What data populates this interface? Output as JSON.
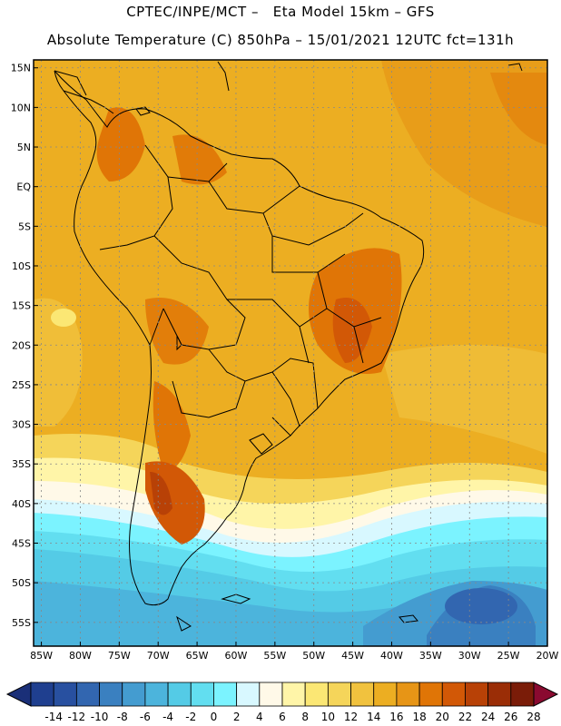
{
  "header": {
    "line1": "CPTEC/INPE/MCT –   Eta Model 15km – GFS",
    "line2": "Absolute Temperature (C) 850hPa – 15/01/2021 12UTC fct=131h"
  },
  "map": {
    "lat_labels": [
      "15N",
      "10N",
      "5N",
      "EQ",
      "5S",
      "10S",
      "15S",
      "20S",
      "25S",
      "30S",
      "35S",
      "40S",
      "45S",
      "50S",
      "55S"
    ],
    "lon_labels": [
      "85W",
      "80W",
      "75W",
      "70W",
      "65W",
      "60W",
      "55W",
      "50W",
      "45W",
      "40W",
      "35W",
      "30W",
      "25W",
      "20W"
    ],
    "lat_range": [
      -58,
      16
    ],
    "lon_range": [
      -86,
      -20
    ],
    "grid": true
  },
  "colorbar": {
    "labels": [
      "-14",
      "-12",
      "-10",
      "-8",
      "-6",
      "-4",
      "-2",
      "0",
      "2",
      "4",
      "6",
      "8",
      "10",
      "12",
      "14",
      "16",
      "18",
      "20",
      "22",
      "24",
      "26",
      "28"
    ],
    "colors": [
      "#1f3f8f",
      "#2850a0",
      "#3266b0",
      "#3a80c0",
      "#449cd0",
      "#4cb4dc",
      "#54cbe6",
      "#62def0",
      "#7bf3ff",
      "#d8f8ff",
      "#fff9e8",
      "#fff5a8",
      "#fbe774",
      "#f5d55a",
      "#f1c23e",
      "#ecae22",
      "#e79516",
      "#e07506",
      "#d25806",
      "#b84106",
      "#9a2d06",
      "#7a1c08"
    ],
    "under_color": "#1a2f78",
    "over_color": "#8a0a30"
  }
}
